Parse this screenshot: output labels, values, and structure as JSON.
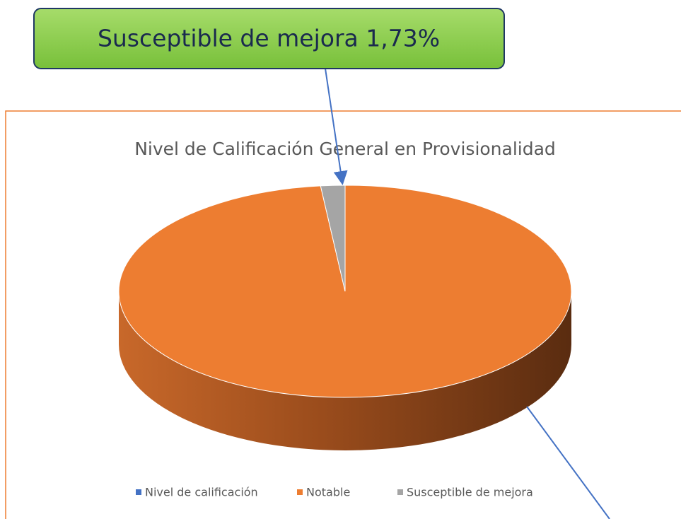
{
  "chart_data": {
    "type": "pie",
    "title": "Nivel de Calificación  General  en Provisionalidad",
    "categories": [
      "Nivel de calificación",
      "Notable",
      "Susceptible de mejora"
    ],
    "values": [
      0,
      98.27,
      1.73
    ],
    "colors": [
      "#4472c4",
      "#ed7d31",
      "#a5a5a5"
    ],
    "annotations": [
      {
        "text": "Susceptible de mejora 1,73%"
      }
    ],
    "legend": "bottom"
  }
}
